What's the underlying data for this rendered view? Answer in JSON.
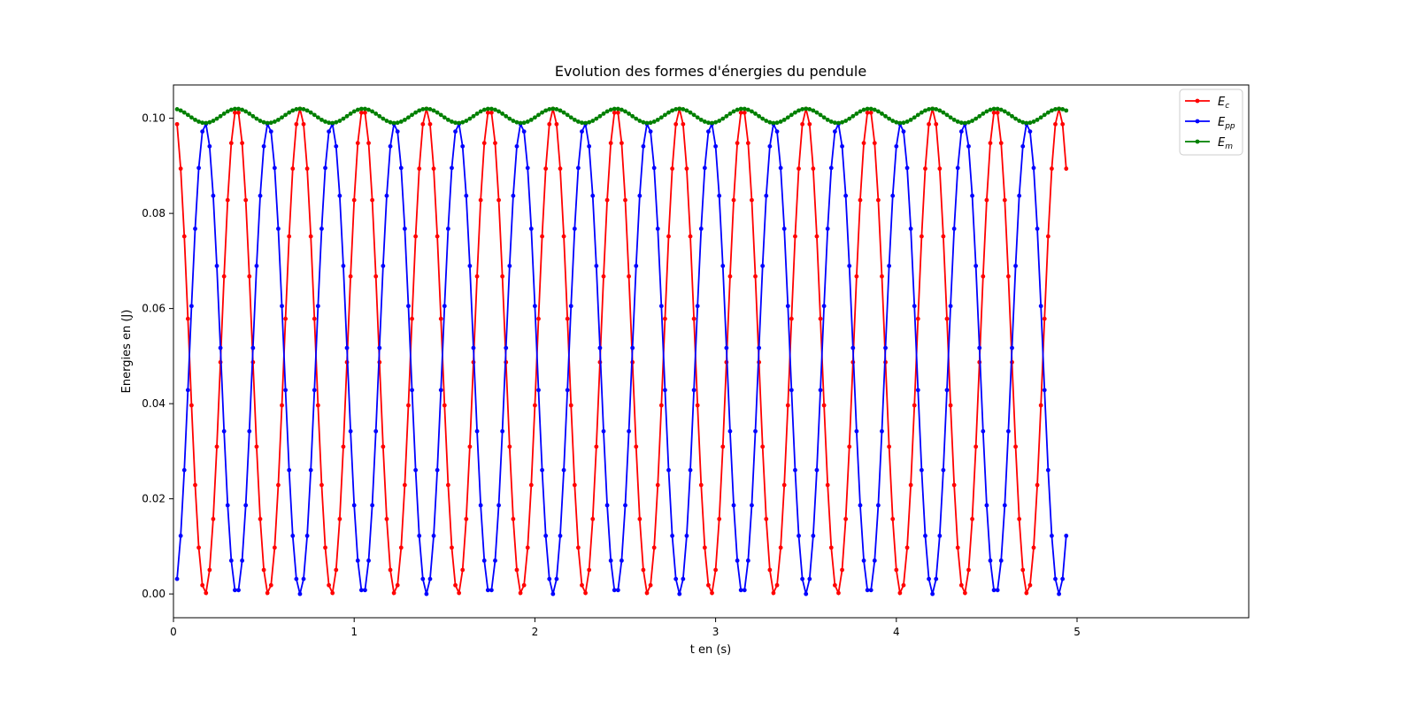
{
  "chart_data": {
    "type": "line",
    "title": "Evolution des formes d'énergies du pendule",
    "xlabel": "t en (s)",
    "ylabel": "Energies en (J)",
    "xlim": [
      0,
      5.95
    ],
    "ylim": [
      -0.005,
      0.107
    ],
    "xticks": [
      "0",
      "1",
      "2",
      "3",
      "4",
      "5"
    ],
    "yticks": [
      "0.00",
      "0.02",
      "0.04",
      "0.06",
      "0.08",
      "0.10"
    ],
    "grid": false,
    "legend_position": "top-right",
    "markers": true,
    "x": {
      "start": 0.02,
      "step": 0.02,
      "end": 4.94
    },
    "series": [
      {
        "name": "E",
        "name_subscript": "c",
        "color": "#ff0000",
        "model": "cos2",
        "amplitude": 0.102,
        "period": 0.7
      },
      {
        "name": "E",
        "name_subscript": "pp",
        "color": "#0000ff",
        "model": "sin2",
        "amplitude": 0.099,
        "period": 0.7
      },
      {
        "name": "E",
        "name_subscript": "m",
        "color": "#008000",
        "model": "sum",
        "description": ""
      }
    ]
  }
}
